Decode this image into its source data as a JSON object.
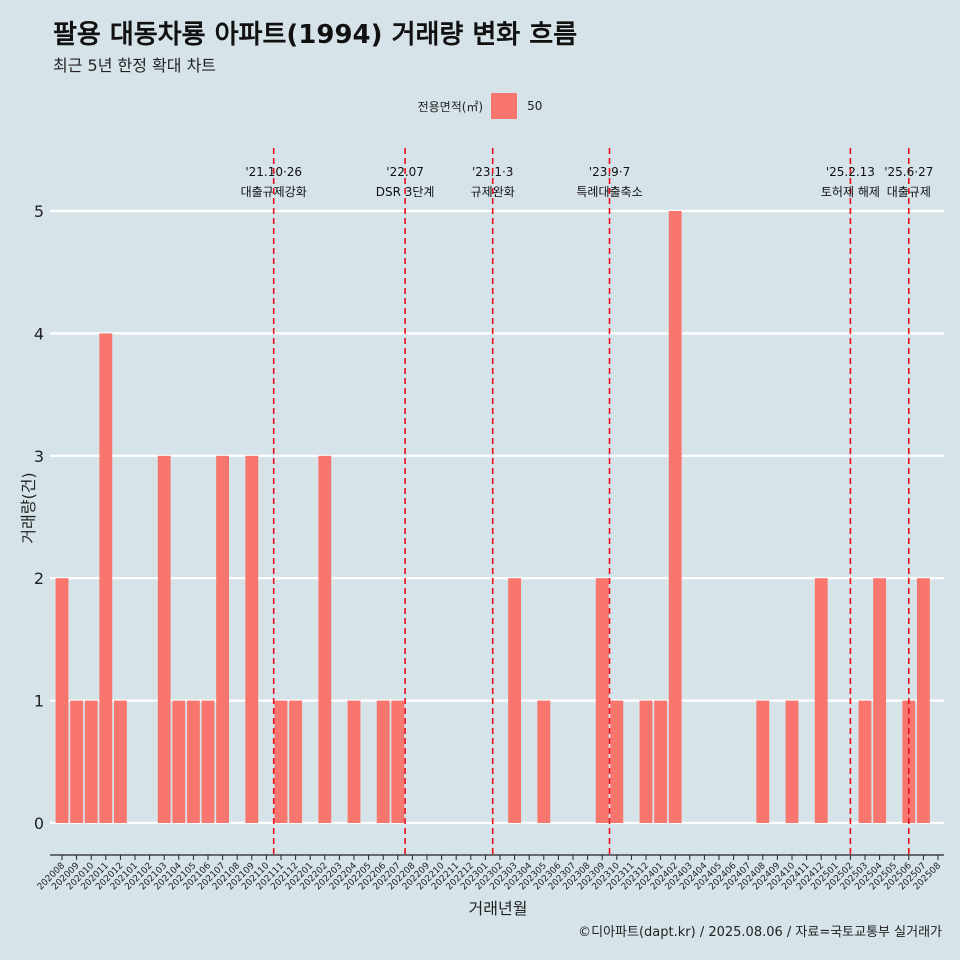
{
  "chart_data": {
    "type": "bar",
    "title": "팔용 대동차룡 아파트(1994) 거래량 변화 흐름",
    "subtitle": "최근 5년 한정 확대 차트",
    "xlabel": "거래년월",
    "ylabel": "거래량(건)",
    "legend": {
      "title": "전용면적(㎡)",
      "position": "top",
      "items": [
        {
          "label": "50",
          "color": "#f8766d"
        }
      ]
    },
    "ylim": [
      0,
      5
    ],
    "yticks": [
      "0",
      "1",
      "2",
      "3",
      "4",
      "5"
    ],
    "grid": true,
    "caption": "©디아파트(dapt.kr) / 2025.08.06 / 자료=국토교통부 실거래가",
    "categories": [
      "202008",
      "202009",
      "202010",
      "202011",
      "202012",
      "202101",
      "202102",
      "202103",
      "202104",
      "202105",
      "202106",
      "202107",
      "202108",
      "202109",
      "202110",
      "202111",
      "202112",
      "202201",
      "202202",
      "202203",
      "202204",
      "202205",
      "202206",
      "202207",
      "202208",
      "202209",
      "202210",
      "202211",
      "202212",
      "202301",
      "202302",
      "202303",
      "202304",
      "202305",
      "202306",
      "202307",
      "202308",
      "202309",
      "202310",
      "202311",
      "202312",
      "202401",
      "202402",
      "202403",
      "202404",
      "202405",
      "202406",
      "202407",
      "202408",
      "202409",
      "202410",
      "202411",
      "202412",
      "202501",
      "202502",
      "202503",
      "202504",
      "202505",
      "202506",
      "202507",
      "202508"
    ],
    "series": [
      {
        "name": "50",
        "color": "#f8766d",
        "values": [
          2,
          1,
          1,
          4,
          1,
          0,
          0,
          3,
          1,
          1,
          1,
          3,
          0,
          3,
          0,
          1,
          1,
          0,
          3,
          0,
          1,
          0,
          1,
          1,
          0,
          0,
          0,
          0,
          0,
          0,
          0,
          2,
          0,
          1,
          0,
          0,
          0,
          2,
          1,
          0,
          1,
          1,
          5,
          0,
          0,
          0,
          0,
          0,
          1,
          0,
          1,
          0,
          2,
          0,
          0,
          1,
          2,
          0,
          1,
          2,
          0
        ]
      }
    ],
    "annotations": [
      {
        "position": 14.5,
        "date": "'21.10·26",
        "label": "대출규제강화"
      },
      {
        "position": 23.5,
        "date": "'22.07",
        "label": "DSR 3단계"
      },
      {
        "position": 29.5,
        "date": "'23.1·3",
        "label": "규제완화"
      },
      {
        "position": 37.5,
        "date": "'23.9·7",
        "label": "특례대출축소"
      },
      {
        "position": 54.0,
        "date": "'25.2.13",
        "label": "토허제 해제"
      },
      {
        "position": 58.0,
        "date": "'25.6·27",
        "label": "대출규제"
      }
    ]
  }
}
